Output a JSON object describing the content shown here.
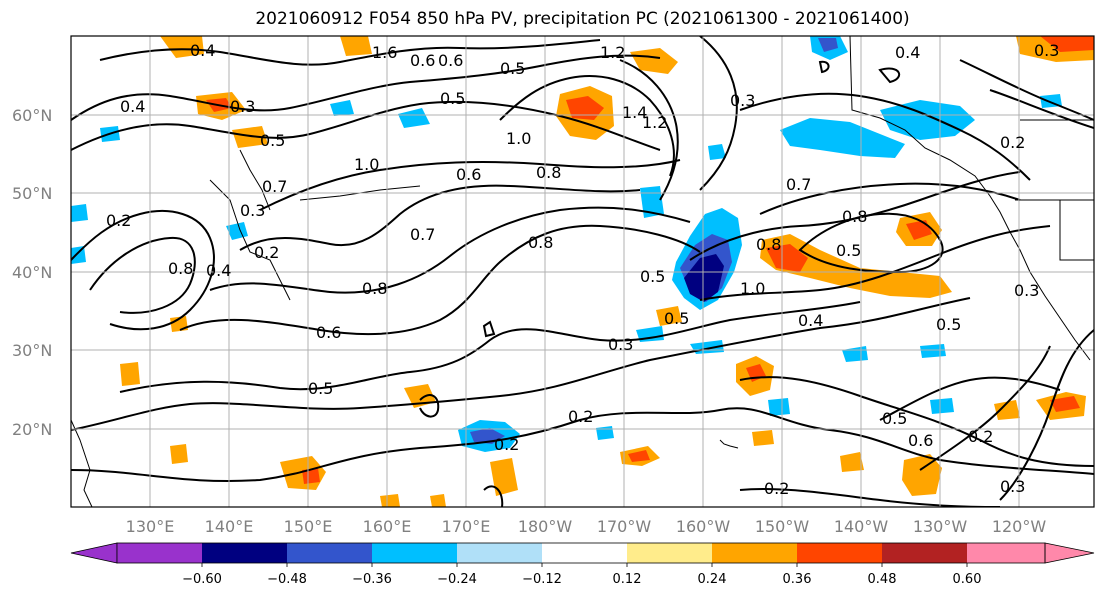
{
  "title": "2021060912 F054 850 hPa PV, precipitation PC (2021061300 - 2021061400)",
  "lat_labels": [
    "60°N",
    "50°N",
    "40°N",
    "30°N",
    "20°N"
  ],
  "lon_labels": [
    "130°E",
    "140°E",
    "150°E",
    "160°E",
    "170°E",
    "180°W",
    "170°W",
    "160°W",
    "150°W",
    "140°W",
    "130°W",
    "120°W"
  ],
  "colorbar": {
    "tick_labels": [
      "−0.60",
      "−0.48",
      "−0.36",
      "−0.24",
      "−0.12",
      "0.12",
      "0.24",
      "0.36",
      "0.48",
      "0.60"
    ],
    "colors": [
      "#9932cc",
      "#000080",
      "#3355cc",
      "#00bfff",
      "#b0e0f8",
      "#ffffff",
      "#ffec8b",
      "#ffa500",
      "#ff4500",
      "#b22222",
      "#ff88aa"
    ]
  },
  "contour_labels": [
    "0.4",
    "1.6",
    "0.6",
    "0.6",
    "1.2",
    "0.4",
    "0.3",
    "0.5",
    "0.3",
    "0.4",
    "0.5",
    "0.5",
    "1.0",
    "1.4",
    "1.2",
    "1.0",
    "0.3",
    "0.2",
    "0.7",
    "0.6",
    "0.8",
    "0.7",
    "0.8",
    "0.3",
    "0.2",
    "0.2",
    "0.8",
    "0.4",
    "0.7",
    "0.8",
    "0.5",
    "0.8",
    "0.5",
    "1.0",
    "0.5",
    "0.6",
    "0.8",
    "0.4",
    "0.3",
    "0.5",
    "0.3",
    "0.5",
    "0.2",
    "0.2",
    "0.5",
    "0.6",
    "0.2",
    "0.2",
    "0.3"
  ]
}
